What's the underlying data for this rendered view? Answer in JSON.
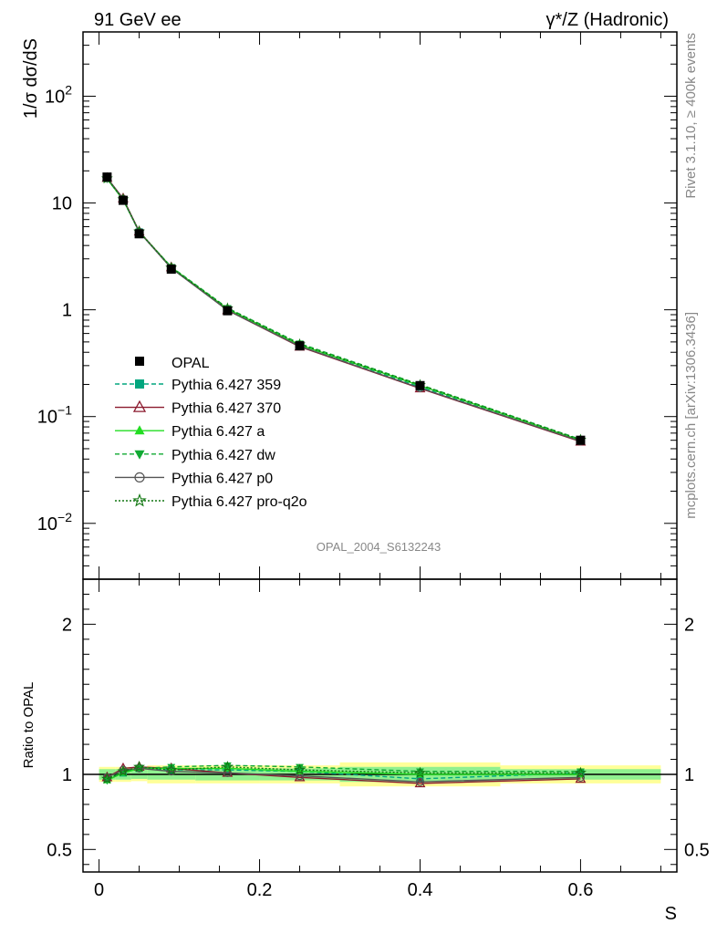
{
  "header": {
    "left": "91 GeV ee",
    "right": "γ*/Z (Hadronic)"
  },
  "side_labels": {
    "rivet": "Rivet 3.1.10, ≥ 400k events",
    "mcplots": "mcplots.cern.ch [arXiv:1306.3436]"
  },
  "watermark": "OPAL_2004_S6132243",
  "chart_data": {
    "type": "line",
    "title": "",
    "xlabel": "S",
    "ylabel": "1/σ dσ/dS",
    "ratio_ylabel": "Ratio to OPAL",
    "xlim": [
      -0.02,
      0.72
    ],
    "ylim": [
      0.003,
      400
    ],
    "yscale": "log",
    "ratio_ylim": [
      0.35,
      2.3
    ],
    "main_ytick_labels": {
      "t100": "10^2",
      "t10": "10",
      "t1": "1",
      "t01": "10^−1",
      "t001": "10^−2"
    },
    "ratio_ytick_labels": [
      "0.5",
      "1",
      "2"
    ],
    "xtick_labels": [
      "0",
      "0.2",
      "0.4",
      "0.6"
    ],
    "x": [
      0.01,
      0.03,
      0.05,
      0.09,
      0.16,
      0.25,
      0.4,
      0.6
    ],
    "reference": {
      "name": "OPAL",
      "values": [
        17.5,
        10.6,
        5.15,
        2.4,
        0.98,
        0.46,
        0.195,
        0.06
      ],
      "ratio_band_x": [
        0.0,
        0.02,
        0.04,
        0.06,
        0.12,
        0.2,
        0.3,
        0.5,
        0.7
      ],
      "ratio_band_stat": [
        0.035,
        0.035,
        0.03,
        0.035,
        0.04,
        0.04,
        0.05,
        0.035
      ],
      "ratio_band_total": [
        0.05,
        0.05,
        0.045,
        0.06,
        0.06,
        0.06,
        0.08,
        0.06
      ]
    },
    "series": [
      {
        "name": "Pythia 6.427 359",
        "color": "#00a67e",
        "dash": "5,3",
        "marker": "square",
        "ratio": [
          0.97,
          1.01,
          1.04,
          1.03,
          1.03,
          1.02,
          0.97,
          1.01
        ]
      },
      {
        "name": "Pythia 6.427 370",
        "color": "#8b1a2e",
        "dash": "",
        "marker": "triangle-open",
        "ratio": [
          0.98,
          1.04,
          1.05,
          1.04,
          1.01,
          0.98,
          0.94,
          0.97
        ]
      },
      {
        "name": "Pythia 6.427 a",
        "color": "#22dd22",
        "dash": "",
        "marker": "triangle",
        "ratio": [
          0.96,
          1.01,
          1.04,
          1.04,
          1.04,
          1.02,
          1.0,
          1.0
        ]
      },
      {
        "name": "Pythia 6.427 dw",
        "color": "#11aa33",
        "dash": "5,3",
        "marker": "triangle-down",
        "ratio": [
          0.96,
          1.02,
          1.04,
          1.05,
          1.06,
          1.05,
          1.02,
          1.02
        ]
      },
      {
        "name": "Pythia 6.427 p0",
        "color": "#555555",
        "dash": "",
        "marker": "circle-open",
        "ratio": [
          0.98,
          1.03,
          1.04,
          1.02,
          1.01,
          0.99,
          0.95,
          0.98
        ]
      },
      {
        "name": "Pythia 6.427 pro-q2o",
        "color": "#117711",
        "dash": "2,2",
        "marker": "star",
        "ratio": [
          0.97,
          1.02,
          1.05,
          1.03,
          1.05,
          1.03,
          1.01,
          1.01
        ]
      }
    ]
  }
}
